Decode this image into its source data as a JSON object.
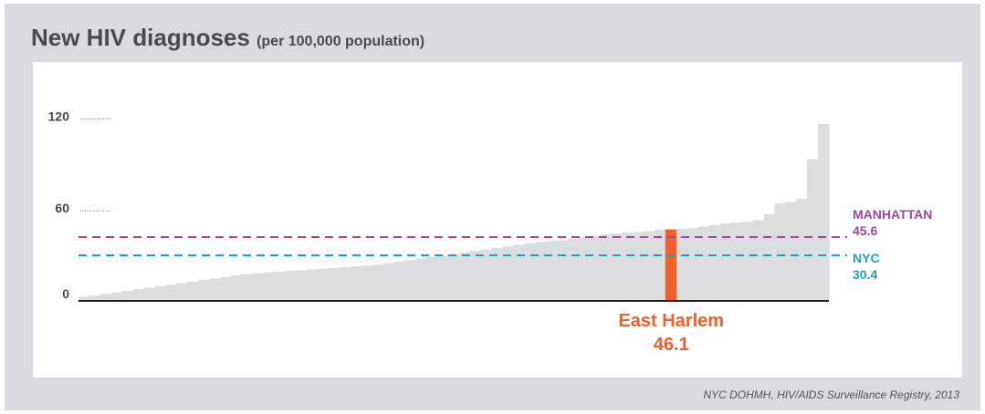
{
  "title": "New HIV diagnoses",
  "subtitle": "(per 100,000 population)",
  "source": "NYC DOHMH, HIV/AIDS Surveillance Registry, 2013",
  "colors": {
    "frame": "#d9dbe0",
    "bars": "#dcdddf",
    "highlight": "#f2602b",
    "manhattan": "#a0479a",
    "nyc": "#19a4bd",
    "axis_text": "#4a4a4a"
  },
  "chart_data": {
    "type": "bar",
    "title": "New HIV diagnoses",
    "subtitle": "(per 100,000 population)",
    "ylim": [
      0,
      140
    ],
    "y_ticks": [
      {
        "value": 0,
        "label": "0"
      },
      {
        "value": 60,
        "label": "60"
      },
      {
        "value": 120,
        "label": "120"
      }
    ],
    "values": [
      2,
      3,
      4,
      5,
      6,
      7,
      8,
      9,
      10,
      11,
      12,
      13,
      14,
      15,
      16,
      17,
      17.5,
      18,
      18.5,
      19,
      19.5,
      20,
      20.5,
      21,
      21.5,
      22,
      22.5,
      23,
      24,
      25,
      26,
      27,
      28,
      29,
      30,
      31,
      32,
      33,
      34,
      35,
      36,
      37,
      38,
      38.5,
      39,
      40,
      41,
      42,
      43,
      43.5,
      44,
      44.5,
      45,
      46,
      46.1,
      46.5,
      47,
      48,
      49,
      50,
      50.5,
      51,
      52,
      56,
      63,
      64,
      66,
      92,
      115
    ],
    "highlight": {
      "index": 54,
      "name": "East Harlem",
      "value": "46.1"
    },
    "reference_lines": [
      {
        "name": "MANHATTAN",
        "value": 45.6,
        "label": "45.6"
      },
      {
        "name": "NYC",
        "value": 30.4,
        "label": "30.4"
      }
    ]
  }
}
